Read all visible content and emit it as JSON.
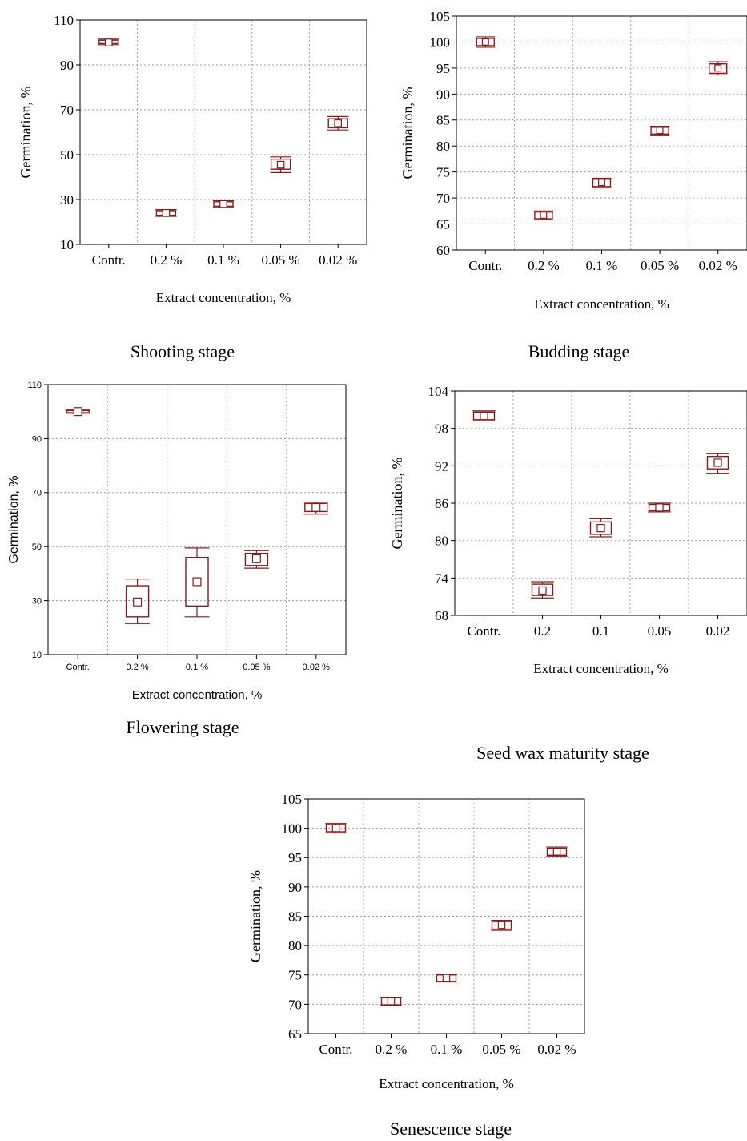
{
  "colors": {
    "box": "#8b1a1a",
    "grid": "#a0a0a0",
    "axis": "#000000"
  },
  "chart_data": [
    {
      "type": "box",
      "caption": "Shooting stage",
      "xlabel": "Extract concentration, %",
      "ylabel": "Germination, %",
      "categories": [
        "Contr.",
        "0.2 %",
        "0.1 %",
        "0.05 %",
        "0.02 %"
      ],
      "ylim": [
        10,
        110
      ],
      "yticks": [
        "10",
        "30",
        "50",
        "70",
        "90",
        "110"
      ],
      "grid": true,
      "boxes": [
        {
          "median": 100,
          "q1": 99.5,
          "q3": 101,
          "min": 99,
          "max": 101.5
        },
        {
          "median": 24,
          "q1": 23,
          "q3": 25,
          "min": 22.5,
          "max": 25.5
        },
        {
          "median": 28,
          "q1": 27,
          "q3": 29,
          "min": 26.5,
          "max": 29.5
        },
        {
          "median": 45.5,
          "q1": 43.5,
          "q3": 48,
          "min": 42,
          "max": 49
        },
        {
          "median": 64,
          "q1": 62,
          "q3": 66,
          "min": 61,
          "max": 67
        }
      ]
    },
    {
      "type": "box",
      "caption": "Budding stage",
      "xlabel": "Extract concentration, %",
      "ylabel": "Germination, %",
      "categories": [
        "Contr.",
        "0.2 %",
        "0.1 %",
        "0.05 %",
        "0.02 %"
      ],
      "ylim": [
        60,
        105
      ],
      "yticks": [
        "60",
        "65",
        "70",
        "75",
        "80",
        "85",
        "90",
        "95",
        "100",
        "105"
      ],
      "grid": true,
      "boxes": [
        {
          "median": 100,
          "q1": 99.3,
          "q3": 100.7,
          "min": 99,
          "max": 101
        },
        {
          "median": 66.7,
          "q1": 66,
          "q3": 67.3,
          "min": 65.8,
          "max": 67.5
        },
        {
          "median": 73,
          "q1": 72.2,
          "q3": 73.6,
          "min": 72,
          "max": 73.8
        },
        {
          "median": 83,
          "q1": 82.3,
          "q3": 83.6,
          "min": 82,
          "max": 83.8
        },
        {
          "median": 95,
          "q1": 94,
          "q3": 95.8,
          "min": 93.7,
          "max": 96.2
        }
      ]
    },
    {
      "type": "box",
      "caption": "Flowering stage",
      "xlabel": "Extract concentration, %",
      "ylabel": "Germination, %",
      "categories": [
        "Contr.",
        "0.2 %",
        "0.1 %",
        "0.05 %",
        "0.02 %"
      ],
      "ylim": [
        10,
        110
      ],
      "yticks": [
        "10",
        "30",
        "50",
        "70",
        "90",
        "110"
      ],
      "grid": true,
      "boxes": [
        {
          "median": 100,
          "q1": 99.6,
          "q3": 100.4,
          "min": 99.4,
          "max": 100.6
        },
        {
          "median": 29.5,
          "q1": 24,
          "q3": 35.5,
          "min": 21.5,
          "max": 38
        },
        {
          "median": 37,
          "q1": 28,
          "q3": 46,
          "min": 24,
          "max": 49.5
        },
        {
          "median": 45.5,
          "q1": 43,
          "q3": 47.5,
          "min": 42,
          "max": 48.5
        },
        {
          "median": 64.5,
          "q1": 63,
          "q3": 66,
          "min": 62,
          "max": 66.5
        }
      ]
    },
    {
      "type": "box",
      "caption": "Seed wax maturity stage",
      "xlabel": "Extract concentration, %",
      "ylabel": "Germination, %",
      "categories": [
        "Contr.",
        "0.2",
        "0.1",
        "0.05",
        "0.02"
      ],
      "ylim": [
        68,
        104
      ],
      "yticks": [
        "68",
        "74",
        "80",
        "86",
        "92",
        "98",
        "104"
      ],
      "grid": true,
      "boxes": [
        {
          "median": 100,
          "q1": 99.4,
          "q3": 100.6,
          "min": 99.2,
          "max": 100.8
        },
        {
          "median": 72,
          "q1": 71.2,
          "q3": 73,
          "min": 70.8,
          "max": 73.4
        },
        {
          "median": 82,
          "q1": 81,
          "q3": 83,
          "min": 80.6,
          "max": 83.5
        },
        {
          "median": 85.3,
          "q1": 84.8,
          "q3": 85.8,
          "min": 84.6,
          "max": 86
        },
        {
          "median": 92.5,
          "q1": 91.5,
          "q3": 93.5,
          "min": 90.8,
          "max": 94
        }
      ]
    },
    {
      "type": "box",
      "caption": "Senescence stage",
      "xlabel": "Extract concentration, %",
      "ylabel": "Germination, %",
      "categories": [
        "Contr.",
        "0.2 %",
        "0.1 %",
        "0.05 %",
        "0.02 %"
      ],
      "ylim": [
        65,
        105
      ],
      "yticks": [
        "65",
        "70",
        "75",
        "80",
        "85",
        "90",
        "95",
        "100",
        "105"
      ],
      "grid": true,
      "boxes": [
        {
          "median": 100,
          "q1": 99.4,
          "q3": 100.6,
          "min": 99.2,
          "max": 100.8
        },
        {
          "median": 70.5,
          "q1": 69.9,
          "q3": 71.1,
          "min": 69.8,
          "max": 71.2
        },
        {
          "median": 74.5,
          "q1": 73.9,
          "q3": 75,
          "min": 73.8,
          "max": 75.1
        },
        {
          "median": 83.5,
          "q1": 82.8,
          "q3": 84.1,
          "min": 82.6,
          "max": 84.3
        },
        {
          "median": 96,
          "q1": 95.4,
          "q3": 96.6,
          "min": 95.2,
          "max": 96.8
        }
      ]
    }
  ]
}
